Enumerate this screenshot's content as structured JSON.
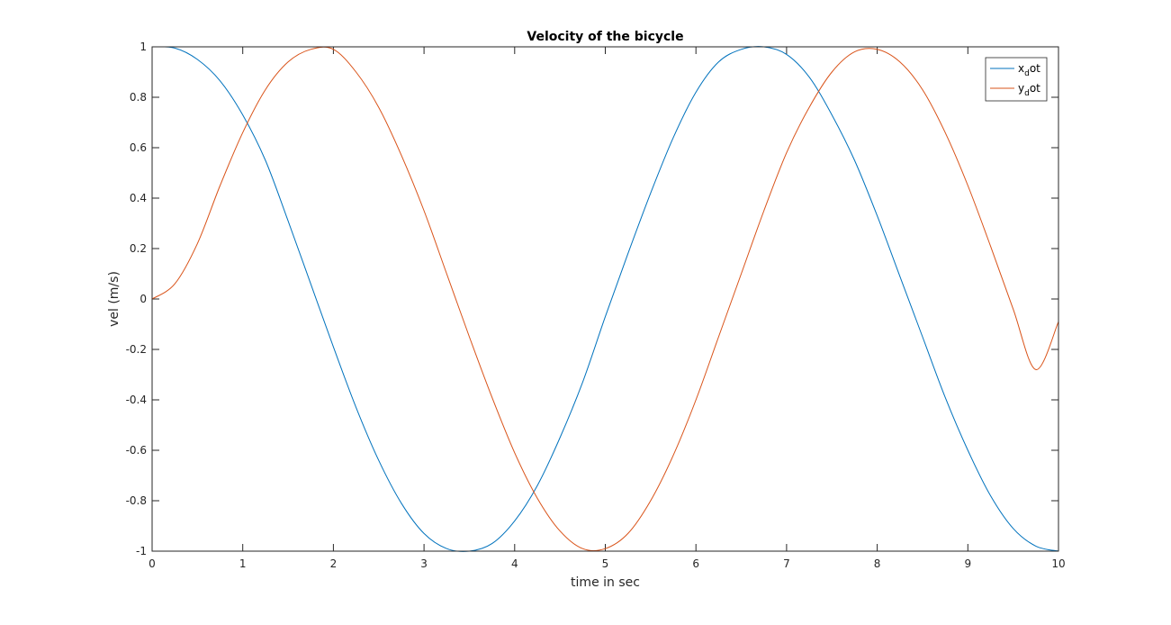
{
  "chart_data": {
    "type": "line",
    "title": "Velocity of the bicycle",
    "xlabel": "time in sec",
    "ylabel": "vel (m/s)",
    "xlim": [
      0,
      10
    ],
    "ylim": [
      -1,
      1
    ],
    "x_ticks": [
      "0",
      "1",
      "2",
      "3",
      "4",
      "5",
      "6",
      "7",
      "8",
      "9",
      "10"
    ],
    "y_ticks": [
      "1",
      "0.8",
      "0.6",
      "0.4",
      "0.2",
      "0",
      "-0.2",
      "-0.4",
      "-0.6",
      "-0.8",
      "-1"
    ],
    "grid": false,
    "legend_position": "top-right",
    "x": [
      0,
      0.25,
      0.5,
      0.75,
      1,
      1.25,
      1.5,
      1.75,
      2,
      2.25,
      2.5,
      2.75,
      3,
      3.25,
      3.5,
      3.75,
      4,
      4.25,
      4.5,
      4.75,
      5,
      5.25,
      5.5,
      5.75,
      6,
      6.25,
      6.5,
      6.75,
      7,
      7.25,
      7.5,
      7.75,
      8,
      8.25,
      8.5,
      8.75,
      9,
      9.25,
      9.5,
      9.75,
      10
    ],
    "series": [
      {
        "name": "x_dot",
        "legend_main": "x",
        "legend_sub": "d",
        "legend_tail": "ot",
        "color": "#0072BD",
        "values": [
          1.0,
          0.995,
          0.95,
          0.865,
          0.73,
          0.55,
          0.31,
          0.06,
          -0.19,
          -0.43,
          -0.64,
          -0.81,
          -0.93,
          -0.99,
          -1.0,
          -0.97,
          -0.88,
          -0.74,
          -0.55,
          -0.33,
          -0.07,
          0.18,
          0.42,
          0.64,
          0.82,
          0.94,
          0.99,
          1.0,
          0.97,
          0.88,
          0.73,
          0.55,
          0.33,
          0.09,
          -0.15,
          -0.39,
          -0.6,
          -0.78,
          -0.91,
          -0.98,
          -1.0
        ]
      },
      {
        "name": "y_dot",
        "legend_main": "y",
        "legend_sub": "d",
        "legend_tail": "ot",
        "color": "#D95319",
        "values": [
          0.0,
          0.06,
          0.22,
          0.45,
          0.66,
          0.83,
          0.94,
          0.99,
          0.99,
          0.9,
          0.76,
          0.57,
          0.35,
          0.1,
          -0.15,
          -0.39,
          -0.61,
          -0.79,
          -0.92,
          -0.99,
          -0.99,
          -0.93,
          -0.8,
          -0.62,
          -0.4,
          -0.15,
          0.1,
          0.35,
          0.58,
          0.76,
          0.9,
          0.98,
          0.99,
          0.94,
          0.83,
          0.66,
          0.45,
          0.21,
          -0.04,
          -0.28,
          -0.09
        ]
      }
    ]
  }
}
